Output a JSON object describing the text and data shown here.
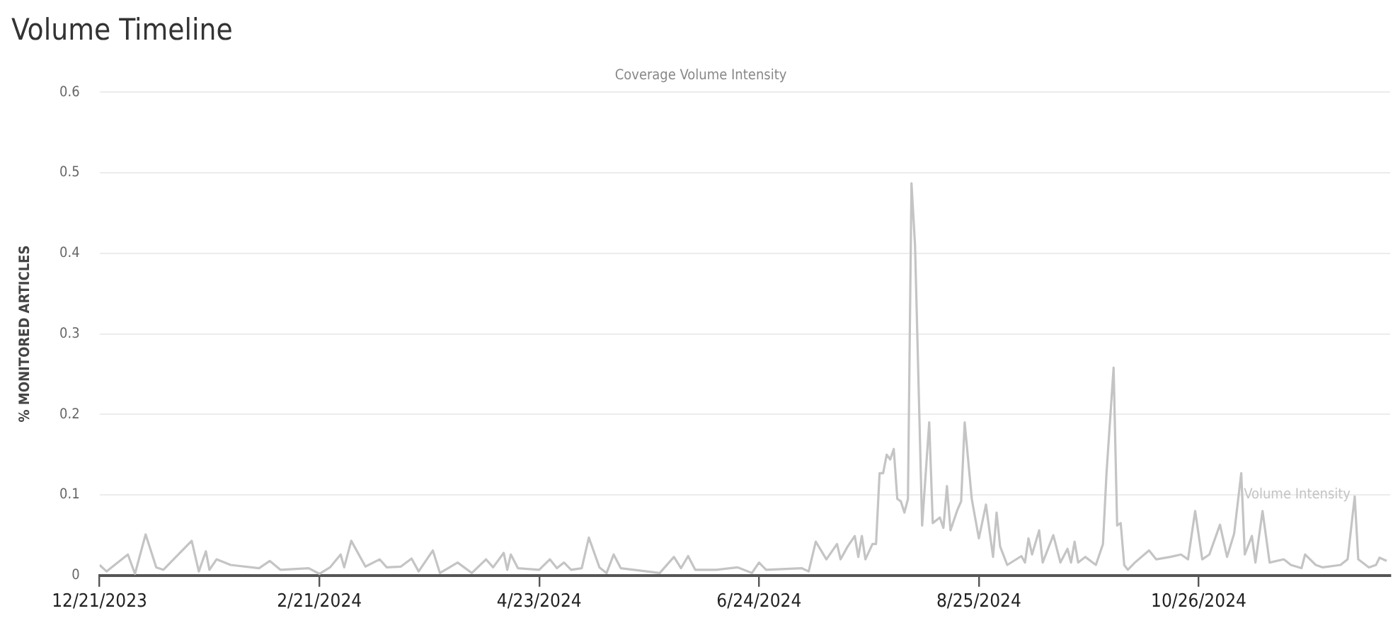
{
  "chart_data": {
    "type": "line",
    "title": "Volume Timeline",
    "subtitle": "Coverage Volume Intensity",
    "ylabel": "% MONITORED ARTICLES",
    "x": [
      "2023-12-21",
      "2023-12-23",
      "2023-12-29",
      "2023-12-31",
      "2024-01-03",
      "2024-01-06",
      "2024-01-08",
      "2024-01-16",
      "2024-01-18",
      "2024-01-20",
      "2024-01-21",
      "2024-01-23",
      "2024-01-27",
      "2024-02-04",
      "2024-02-07",
      "2024-02-10",
      "2024-02-18",
      "2024-02-21",
      "2024-02-24",
      "2024-02-27",
      "2024-02-28",
      "2024-03-01",
      "2024-03-05",
      "2024-03-09",
      "2024-03-11",
      "2024-03-15",
      "2024-03-18",
      "2024-03-20",
      "2024-03-24",
      "2024-03-26",
      "2024-03-31",
      "2024-04-04",
      "2024-04-08",
      "2024-04-10",
      "2024-04-13",
      "2024-04-14",
      "2024-04-15",
      "2024-04-17",
      "2024-04-23",
      "2024-04-26",
      "2024-04-28",
      "2024-04-30",
      "2024-05-02",
      "2024-05-05",
      "2024-05-07",
      "2024-05-10",
      "2024-05-12",
      "2024-05-14",
      "2024-05-16",
      "2024-05-27",
      "2024-05-31",
      "2024-06-02",
      "2024-06-04",
      "2024-06-06",
      "2024-06-12",
      "2024-06-18",
      "2024-06-22",
      "2024-06-24",
      "2024-06-26",
      "2024-07-06",
      "2024-07-08",
      "2024-07-10",
      "2024-07-13",
      "2024-07-16",
      "2024-07-17",
      "2024-07-19",
      "2024-07-21",
      "2024-07-22",
      "2024-07-23",
      "2024-07-24",
      "2024-07-26",
      "2024-07-27",
      "2024-07-28",
      "2024-07-29",
      "2024-07-30",
      "2024-07-31",
      "2024-08-01",
      "2024-08-02",
      "2024-08-03",
      "2024-08-04",
      "2024-08-05",
      "2024-08-06",
      "2024-08-07",
      "2024-08-09",
      "2024-08-11",
      "2024-08-12",
      "2024-08-14",
      "2024-08-15",
      "2024-08-16",
      "2024-08-17",
      "2024-08-19",
      "2024-08-20",
      "2024-08-21",
      "2024-08-23",
      "2024-08-25",
      "2024-08-27",
      "2024-08-29",
      "2024-08-30",
      "2024-08-31",
      "2024-09-02",
      "2024-09-06",
      "2024-09-07",
      "2024-09-08",
      "2024-09-09",
      "2024-09-11",
      "2024-09-12",
      "2024-09-15",
      "2024-09-17",
      "2024-09-19",
      "2024-09-20",
      "2024-09-21",
      "2024-09-22",
      "2024-09-24",
      "2024-09-27",
      "2024-09-29",
      "2024-09-30",
      "2024-10-02",
      "2024-10-03",
      "2024-10-04",
      "2024-10-05",
      "2024-10-06",
      "2024-10-08",
      "2024-10-12",
      "2024-10-14",
      "2024-10-18",
      "2024-10-21",
      "2024-10-23",
      "2024-10-25",
      "2024-10-27",
      "2024-10-29",
      "2024-11-01",
      "2024-11-03",
      "2024-11-05",
      "2024-11-07",
      "2024-11-08",
      "2024-11-10",
      "2024-11-11",
      "2024-11-13",
      "2024-11-15",
      "2024-11-19",
      "2024-11-21",
      "2024-11-24",
      "2024-11-25",
      "2024-11-28",
      "2024-11-30",
      "2024-12-05",
      "2024-12-07",
      "2024-12-09",
      "2024-12-10",
      "2024-12-13",
      "2024-12-15",
      "2024-12-16",
      "2024-12-18"
    ],
    "series": [
      {
        "name": "Volume Intensity",
        "color": "#c4c4c4",
        "values": [
          0.013,
          0.005,
          0.026,
          0.002,
          0.051,
          0.01,
          0.007,
          0.043,
          0.005,
          0.03,
          0.007,
          0.02,
          0.013,
          0.009,
          0.018,
          0.007,
          0.009,
          0.002,
          0.01,
          0.026,
          0.01,
          0.043,
          0.011,
          0.02,
          0.01,
          0.011,
          0.021,
          0.005,
          0.031,
          0.003,
          0.016,
          0.003,
          0.02,
          0.01,
          0.028,
          0.007,
          0.026,
          0.009,
          0.007,
          0.02,
          0.009,
          0.016,
          0.007,
          0.009,
          0.047,
          0.01,
          0.003,
          0.026,
          0.009,
          0.003,
          0.023,
          0.009,
          0.024,
          0.007,
          0.007,
          0.01,
          0.003,
          0.016,
          0.007,
          0.009,
          0.005,
          0.042,
          0.02,
          0.039,
          0.02,
          0.036,
          0.049,
          0.023,
          0.049,
          0.02,
          0.039,
          0.039,
          0.127,
          0.127,
          0.15,
          0.144,
          0.157,
          0.095,
          0.092,
          0.078,
          0.095,
          0.487,
          0.41,
          0.062,
          0.19,
          0.065,
          0.072,
          0.059,
          0.111,
          0.056,
          0.082,
          0.092,
          0.19,
          0.095,
          0.046,
          0.088,
          0.023,
          0.078,
          0.036,
          0.013,
          0.024,
          0.016,
          0.046,
          0.026,
          0.056,
          0.016,
          0.05,
          0.016,
          0.033,
          0.016,
          0.042,
          0.016,
          0.023,
          0.013,
          0.039,
          0.127,
          0.258,
          0.062,
          0.065,
          0.013,
          0.007,
          0.016,
          0.031,
          0.02,
          0.023,
          0.026,
          0.02,
          0.08,
          0.02,
          0.026,
          0.063,
          0.023,
          0.052,
          0.127,
          0.026,
          0.049,
          0.016,
          0.08,
          0.016,
          0.02,
          0.013,
          0.009,
          0.026,
          0.013,
          0.01,
          0.013,
          0.02,
          0.098,
          0.02,
          0.01,
          0.013,
          0.022,
          0.018
        ]
      }
    ],
    "xlim": [
      "2023-12-21",
      "2024-12-19"
    ],
    "xticks": [
      {
        "value": "2023-12-21",
        "label": "12/21/2023"
      },
      {
        "value": "2024-02-21",
        "label": "2/21/2024"
      },
      {
        "value": "2024-04-23",
        "label": "4/23/2024"
      },
      {
        "value": "2024-06-24",
        "label": "6/24/2024"
      },
      {
        "value": "2024-08-25",
        "label": "8/25/2024"
      },
      {
        "value": "2024-10-26",
        "label": "10/26/2024"
      }
    ],
    "ylim": [
      0,
      0.6
    ],
    "yticks": [
      0,
      0.1,
      0.2,
      0.3,
      0.4,
      0.5,
      0.6
    ],
    "grid": "y",
    "marker": "none",
    "line_style": "solid"
  }
}
